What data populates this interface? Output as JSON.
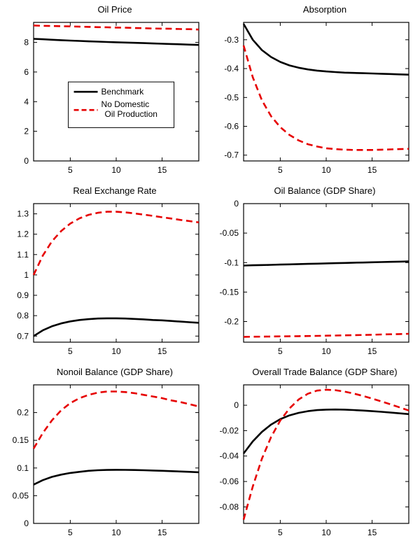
{
  "page": {
    "background": "#ffffff",
    "axis_color": "#000000"
  },
  "legend": {
    "entries": [
      {
        "lines": [
          "Benchmark"
        ],
        "color": "#000000",
        "dash": false
      },
      {
        "lines": [
          "No Domestic",
          "Oil Production"
        ],
        "color": "#e60000",
        "dash": true
      }
    ]
  },
  "chart_data": [
    {
      "type": "line",
      "title": "Oil Price",
      "x": [
        1,
        2,
        3,
        4,
        5,
        6,
        7,
        8,
        9,
        10,
        11,
        12,
        13,
        14,
        15,
        16,
        17,
        18,
        19
      ],
      "xlim": [
        1,
        19
      ],
      "ylim": [
        0,
        9.35
      ],
      "xticks": [
        5,
        10,
        15
      ],
      "xtick_labels": [
        "5",
        "10",
        "15"
      ],
      "yticks": [
        0,
        2,
        4,
        6,
        8
      ],
      "ytick_labels": [
        "0",
        "2",
        "4",
        "6",
        "8"
      ],
      "show_legend": true,
      "series": [
        {
          "name": "Benchmark",
          "color": "#000000",
          "dash": false,
          "values": [
            8.24,
            8.21,
            8.18,
            8.15,
            8.12,
            8.1,
            8.07,
            8.05,
            8.03,
            8.01,
            7.99,
            7.97,
            7.95,
            7.93,
            7.91,
            7.89,
            7.87,
            7.85,
            7.83
          ]
        },
        {
          "name": "No Domestic Oil Production",
          "color": "#e60000",
          "dash": true,
          "values": [
            9.14,
            9.12,
            9.11,
            9.09,
            9.08,
            9.06,
            9.05,
            9.03,
            9.02,
            9.0,
            8.99,
            8.97,
            8.96,
            8.94,
            8.93,
            8.92,
            8.9,
            8.89,
            8.87
          ]
        }
      ]
    },
    {
      "type": "line",
      "title": "Absorption",
      "x": [
        1,
        2,
        3,
        4,
        5,
        6,
        7,
        8,
        9,
        10,
        11,
        12,
        13,
        14,
        15,
        16,
        17,
        18,
        19
      ],
      "xlim": [
        1,
        19
      ],
      "ylim": [
        -0.72,
        -0.24
      ],
      "xticks": [
        5,
        10,
        15
      ],
      "xtick_labels": [
        "5",
        "10",
        "15"
      ],
      "yticks": [
        -0.3,
        -0.4,
        -0.5,
        -0.6,
        -0.7
      ],
      "ytick_labels": [
        "-0.3",
        "-0.4",
        "-0.5",
        "-0.6",
        "-0.7"
      ],
      "show_legend": false,
      "series": [
        {
          "name": "Benchmark",
          "color": "#000000",
          "dash": false,
          "values": [
            -0.245,
            -0.3,
            -0.336,
            -0.36,
            -0.377,
            -0.389,
            -0.397,
            -0.403,
            -0.407,
            -0.41,
            -0.412,
            -0.414,
            -0.415,
            -0.416,
            -0.417,
            -0.418,
            -0.419,
            -0.42,
            -0.421
          ]
        },
        {
          "name": "No Domestic Oil Production",
          "color": "#e60000",
          "dash": true,
          "values": [
            -0.32,
            -0.43,
            -0.51,
            -0.565,
            -0.603,
            -0.63,
            -0.649,
            -0.662,
            -0.67,
            -0.676,
            -0.679,
            -0.681,
            -0.682,
            -0.682,
            -0.682,
            -0.681,
            -0.68,
            -0.679,
            -0.678
          ]
        }
      ]
    },
    {
      "type": "line",
      "title": "Real Exchange Rate",
      "x": [
        1,
        2,
        3,
        4,
        5,
        6,
        7,
        8,
        9,
        10,
        11,
        12,
        13,
        14,
        15,
        16,
        17,
        18,
        19
      ],
      "xlim": [
        1,
        19
      ],
      "ylim": [
        0.67,
        1.35
      ],
      "xticks": [
        5,
        10,
        15
      ],
      "xtick_labels": [
        "5",
        "10",
        "15"
      ],
      "yticks": [
        0.7,
        0.8,
        0.9,
        1,
        1.1,
        1.2,
        1.3
      ],
      "ytick_labels": [
        "0.7",
        "0.8",
        "0.9",
        "1",
        "1.1",
        "1.2",
        "1.3"
      ],
      "show_legend": false,
      "series": [
        {
          "name": "Benchmark",
          "color": "#000000",
          "dash": false,
          "values": [
            0.7,
            0.728,
            0.748,
            0.762,
            0.772,
            0.779,
            0.783,
            0.786,
            0.787,
            0.787,
            0.786,
            0.784,
            0.782,
            0.779,
            0.777,
            0.774,
            0.771,
            0.768,
            0.765
          ]
        },
        {
          "name": "No Domestic Oil Production",
          "color": "#e60000",
          "dash": true,
          "values": [
            1.0,
            1.095,
            1.165,
            1.215,
            1.252,
            1.278,
            1.295,
            1.305,
            1.31,
            1.31,
            1.307,
            1.302,
            1.296,
            1.29,
            1.283,
            1.277,
            1.27,
            1.264,
            1.258
          ]
        }
      ]
    },
    {
      "type": "line",
      "title": "Oil Balance (GDP Share)",
      "x": [
        1,
        2,
        3,
        4,
        5,
        6,
        7,
        8,
        9,
        10,
        11,
        12,
        13,
        14,
        15,
        16,
        17,
        18,
        19
      ],
      "xlim": [
        1,
        19
      ],
      "ylim": [
        -0.235,
        0
      ],
      "xticks": [
        5,
        10,
        15
      ],
      "xtick_labels": [
        "5",
        "10",
        "15"
      ],
      "yticks": [
        0,
        -0.05,
        -0.1,
        -0.15,
        -0.2
      ],
      "ytick_labels": [
        "0",
        "-0.05",
        "-0.1",
        "-0.15",
        "-0.2"
      ],
      "show_legend": false,
      "series": [
        {
          "name": "Benchmark",
          "color": "#000000",
          "dash": false,
          "values": [
            -0.105,
            -0.1046,
            -0.1042,
            -0.1038,
            -0.1034,
            -0.103,
            -0.1026,
            -0.1022,
            -0.1018,
            -0.1014,
            -0.101,
            -0.1006,
            -0.1002,
            -0.0999,
            -0.0995,
            -0.0991,
            -0.0988,
            -0.0984,
            -0.098
          ]
        },
        {
          "name": "No Domestic Oil Production",
          "color": "#e60000",
          "dash": true,
          "values": [
            -0.226,
            -0.2258,
            -0.2256,
            -0.2254,
            -0.2252,
            -0.225,
            -0.2248,
            -0.2246,
            -0.2243,
            -0.224,
            -0.2237,
            -0.2234,
            -0.2231,
            -0.2228,
            -0.2224,
            -0.222,
            -0.2216,
            -0.2212,
            -0.2208
          ]
        }
      ]
    },
    {
      "type": "line",
      "title": "Nonoil Balance (GDP Share)",
      "x": [
        1,
        2,
        3,
        4,
        5,
        6,
        7,
        8,
        9,
        10,
        11,
        12,
        13,
        14,
        15,
        16,
        17,
        18,
        19
      ],
      "xlim": [
        1,
        19
      ],
      "ylim": [
        0,
        0.25
      ],
      "xticks": [
        5,
        10,
        15
      ],
      "xtick_labels": [
        "5",
        "10",
        "15"
      ],
      "yticks": [
        0,
        0.05,
        0.1,
        0.15,
        0.2
      ],
      "ytick_labels": [
        "0",
        "0.05",
        "0.1",
        "0.15",
        "0.2"
      ],
      "show_legend": false,
      "series": [
        {
          "name": "Benchmark",
          "color": "#000000",
          "dash": false,
          "values": [
            0.07,
            0.078,
            0.084,
            0.088,
            0.091,
            0.093,
            0.095,
            0.096,
            0.0965,
            0.0967,
            0.0966,
            0.0963,
            0.0959,
            0.0954,
            0.0949,
            0.0943,
            0.0937,
            0.093,
            0.0923
          ]
        },
        {
          "name": "No Domestic Oil Production",
          "color": "#e60000",
          "dash": true,
          "values": [
            0.135,
            0.163,
            0.186,
            0.204,
            0.217,
            0.226,
            0.232,
            0.236,
            0.238,
            0.238,
            0.237,
            0.235,
            0.232,
            0.229,
            0.226,
            0.222,
            0.219,
            0.215,
            0.211
          ]
        }
      ]
    },
    {
      "type": "line",
      "title": "Overall Trade Balance (GDP Share)",
      "x": [
        1,
        2,
        3,
        4,
        5,
        6,
        7,
        8,
        9,
        10,
        11,
        12,
        13,
        14,
        15,
        16,
        17,
        18,
        19
      ],
      "xlim": [
        1,
        19
      ],
      "ylim": [
        -0.093,
        0.016
      ],
      "xticks": [
        5,
        10,
        15
      ],
      "xtick_labels": [
        "5",
        "10",
        "15"
      ],
      "yticks": [
        0,
        -0.02,
        -0.04,
        -0.06,
        -0.08
      ],
      "ytick_labels": [
        "0",
        "-0.02",
        "-0.04",
        "-0.06",
        "-0.08"
      ],
      "show_legend": false,
      "series": [
        {
          "name": "Benchmark",
          "color": "#000000",
          "dash": false,
          "values": [
            -0.038,
            -0.0285,
            -0.021,
            -0.0152,
            -0.011,
            -0.008,
            -0.006,
            -0.0047,
            -0.0039,
            -0.0035,
            -0.0034,
            -0.0035,
            -0.0038,
            -0.0042,
            -0.0047,
            -0.0052,
            -0.0058,
            -0.0064,
            -0.007
          ]
        },
        {
          "name": "No Domestic Oil Production",
          "color": "#e60000",
          "dash": true,
          "values": [
            -0.09,
            -0.064,
            -0.042,
            -0.025,
            -0.012,
            -0.0025,
            0.0045,
            0.009,
            0.0115,
            0.0122,
            0.0118,
            0.0107,
            0.0092,
            0.0073,
            0.0052,
            0.003,
            0.0007,
            -0.0017,
            -0.0042
          ]
        }
      ]
    }
  ]
}
